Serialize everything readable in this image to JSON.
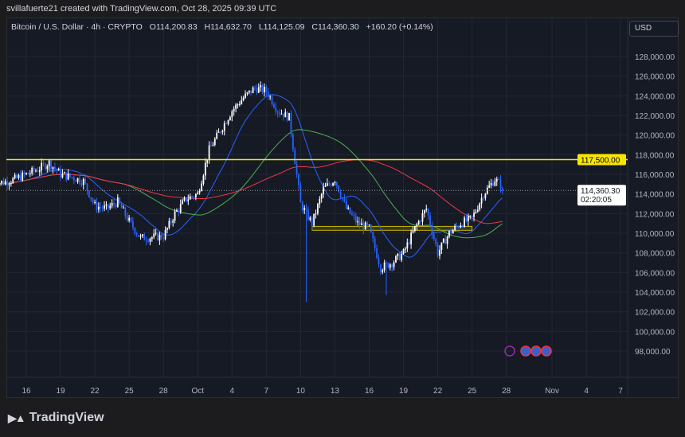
{
  "credit": "svillafuerte21 created with TradingView.com, Oct 28, 2025 09:39 UTC",
  "legend": {
    "symbol": "Bitcoin / U.S. Dollar · 4h · CRYPTO",
    "open": "O114,200.83",
    "high": "H114,632.70",
    "low": "L114,125.09",
    "close": "C114,360.30",
    "change": "+160.20 (+0.14%)"
  },
  "currency": "USD",
  "brand": "TradingView",
  "price_label": {
    "value": "114,360.30",
    "countdown": "02:20:05"
  },
  "level_label": "117,500.00",
  "colors": {
    "up": "#ffffff",
    "down": "#2962ff",
    "ma_fast": "#2962ff",
    "ma_mid": "#4caf50",
    "ma_slow": "#f23645",
    "level": "#f7e600"
  },
  "chart_data": {
    "type": "candlestick",
    "title": "Bitcoin / U.S. Dollar · 4h",
    "ylim": [
      96000,
      130000
    ],
    "y_ticks": [
      "128,000.00",
      "126,000.00",
      "124,000.00",
      "122,000.00",
      "120,000.00",
      "118,000.00",
      "116,000.00",
      "114,000.00",
      "112,000.00",
      "110,000.00",
      "108,000.00",
      "106,000.00",
      "104,000.00",
      "102,000.00",
      "100,000.00",
      "98,000.00"
    ],
    "x_ticks": [
      {
        "label": "16",
        "day": 16
      },
      {
        "label": "19",
        "day": 19
      },
      {
        "label": "22",
        "day": 22
      },
      {
        "label": "25",
        "day": 25
      },
      {
        "label": "28",
        "day": 28
      },
      {
        "label": "Oct",
        "day": 31
      },
      {
        "label": "4",
        "day": 34
      },
      {
        "label": "7",
        "day": 37
      },
      {
        "label": "10",
        "day": 40
      },
      {
        "label": "13",
        "day": 43
      },
      {
        "label": "16",
        "day": 46
      },
      {
        "label": "19",
        "day": 49
      },
      {
        "label": "22",
        "day": 52
      },
      {
        "label": "25",
        "day": 55
      },
      {
        "label": "28",
        "day": 58
      },
      {
        "label": "Nov",
        "day": 62
      },
      {
        "label": "4",
        "day": 65
      },
      {
        "label": "7",
        "day": 68
      }
    ],
    "start_day": 14,
    "daily_close": [
      115200,
      115500,
      116000,
      116500,
      117200,
      116000,
      115700,
      115300,
      112800,
      112500,
      113200,
      111200,
      109500,
      109600,
      109700,
      112000,
      113500,
      114000,
      118500,
      120500,
      122500,
      123800,
      124800,
      124500,
      122500,
      121800,
      113000,
      111000,
      114500,
      115500,
      112500,
      111000,
      110500,
      106500,
      107000,
      108000,
      110500,
      112500,
      108000,
      110000,
      111000,
      111500,
      114000,
      115500,
      114360
    ],
    "horizontal_level": 117500,
    "zone": {
      "from_day": 41,
      "to_day": 55,
      "low": 110300,
      "high": 110700
    },
    "current_price": 114360.3
  }
}
